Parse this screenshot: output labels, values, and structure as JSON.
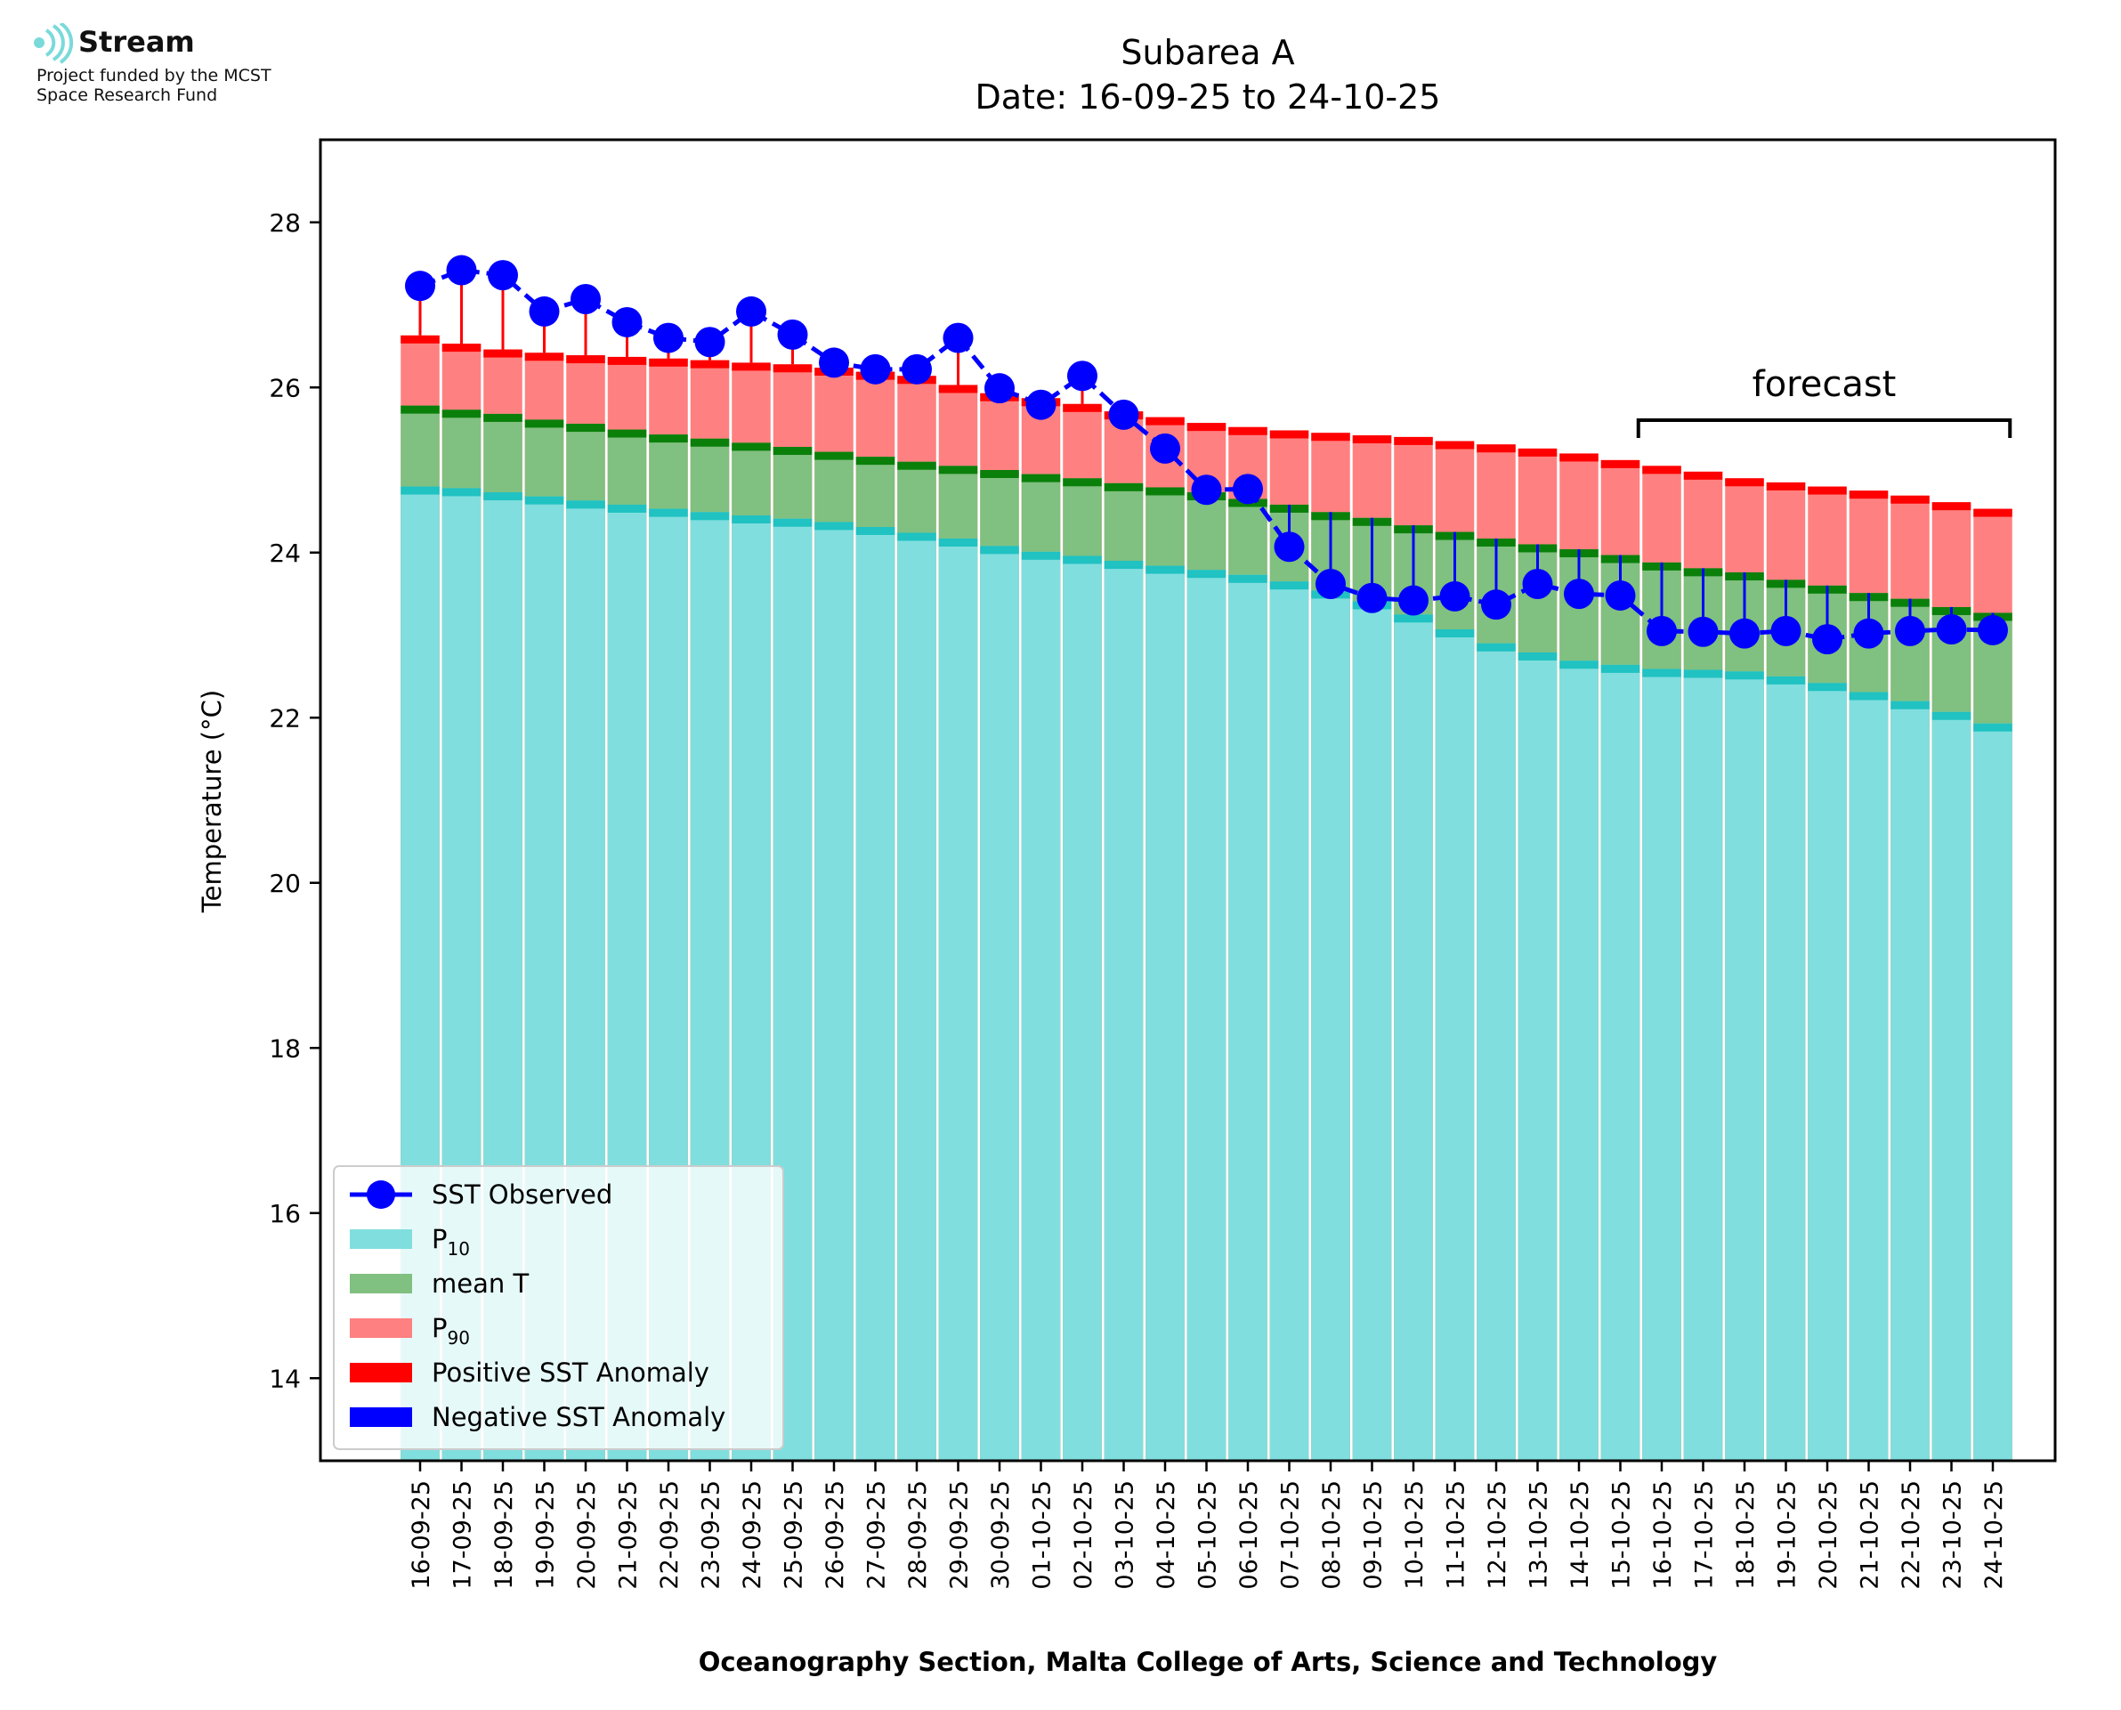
{
  "logo": {
    "name": "Stream",
    "line1": "Project funded by the MCST",
    "line2": "Space Research Fund"
  },
  "colors": {
    "p10": "#80DEDE",
    "p10_cap": "#20C2C2",
    "mean": "#80C080",
    "mean_cap": "#0A800A",
    "p90": "#FF8080",
    "p90_cap": "#FF0000",
    "observed": "#0000FF",
    "positive_anomaly": "#FF0000",
    "negative_anomaly": "#0000FF"
  },
  "chart_data": {
    "type": "bar",
    "title": "Subarea A",
    "subtitle": "Date: 16-09-25 to 24-10-25",
    "xlabel": "Oceanography Section, Malta College of Arts, Science and Technology",
    "ylabel": "Temperature (°C)",
    "ylim": [
      13,
      29
    ],
    "yticks": [
      14,
      16,
      18,
      20,
      22,
      24,
      26,
      28
    ],
    "grid": false,
    "legend_position": "lower-left",
    "annotation": "forecast",
    "forecast_range": [
      "16-10-25",
      "24-10-25"
    ],
    "categories": [
      "16-09-25",
      "17-09-25",
      "18-09-25",
      "19-09-25",
      "20-09-25",
      "21-09-25",
      "22-09-25",
      "23-09-25",
      "24-09-25",
      "25-09-25",
      "26-09-25",
      "27-09-25",
      "28-09-25",
      "29-09-25",
      "30-09-25",
      "01-10-25",
      "02-10-25",
      "03-10-25",
      "04-10-25",
      "05-10-25",
      "06-10-25",
      "07-10-25",
      "08-10-25",
      "09-10-25",
      "10-10-25",
      "11-10-25",
      "12-10-25",
      "13-10-25",
      "14-10-25",
      "15-10-25",
      "16-10-25",
      "17-10-25",
      "18-10-25",
      "19-10-25",
      "20-10-25",
      "21-10-25",
      "22-10-25",
      "23-10-25",
      "24-10-25"
    ],
    "legend": [
      {
        "label": "SST Observed",
        "kind": "line"
      },
      {
        "label": "P",
        "sub": "10",
        "kind": "p10"
      },
      {
        "label": "mean T",
        "kind": "mean"
      },
      {
        "label": "P",
        "sub": "90",
        "kind": "p90"
      },
      {
        "label": "Positive SST Anomaly",
        "kind": "pos"
      },
      {
        "label": "Negative SST Anomaly",
        "kind": "neg"
      }
    ],
    "series": [
      {
        "name": "P10",
        "values": [
          24.8,
          24.78,
          24.73,
          24.68,
          24.63,
          24.58,
          24.53,
          24.49,
          24.45,
          24.41,
          24.37,
          24.31,
          24.24,
          24.17,
          24.08,
          24.01,
          23.96,
          23.9,
          23.84,
          23.79,
          23.73,
          23.65,
          23.54,
          23.41,
          23.25,
          23.07,
          22.9,
          22.79,
          22.69,
          22.64,
          22.59,
          22.58,
          22.56,
          22.5,
          22.42,
          22.31,
          22.2,
          22.07,
          21.93
        ]
      },
      {
        "name": "mean T",
        "values": [
          25.78,
          25.73,
          25.68,
          25.61,
          25.56,
          25.49,
          25.43,
          25.38,
          25.33,
          25.28,
          25.22,
          25.16,
          25.1,
          25.05,
          25.0,
          24.95,
          24.9,
          24.84,
          24.79,
          24.73,
          24.65,
          24.58,
          24.49,
          24.42,
          24.33,
          24.25,
          24.17,
          24.1,
          24.04,
          23.97,
          23.88,
          23.81,
          23.76,
          23.67,
          23.6,
          23.51,
          23.44,
          23.34,
          23.27
        ]
      },
      {
        "name": "P90",
        "values": [
          26.63,
          26.53,
          26.46,
          26.42,
          26.39,
          26.37,
          26.35,
          26.33,
          26.3,
          26.28,
          26.24,
          26.19,
          26.14,
          26.03,
          25.93,
          25.87,
          25.8,
          25.71,
          25.64,
          25.57,
          25.52,
          25.48,
          25.45,
          25.42,
          25.4,
          25.35,
          25.31,
          25.26,
          25.2,
          25.12,
          25.05,
          24.98,
          24.9,
          24.85,
          24.8,
          24.75,
          24.69,
          24.61,
          24.53
        ]
      },
      {
        "name": "SST Observed",
        "values": [
          27.23,
          27.42,
          27.36,
          26.92,
          27.07,
          26.79,
          26.6,
          26.55,
          26.92,
          26.64,
          26.3,
          26.22,
          26.22,
          26.6,
          25.99,
          25.79,
          26.14,
          25.67,
          25.26,
          24.76,
          24.77,
          24.07,
          23.62,
          23.45,
          23.42,
          23.47,
          23.37,
          23.62,
          23.5,
          23.48,
          23.05,
          23.04,
          23.02,
          23.05,
          22.95,
          23.02,
          23.05,
          23.07,
          23.06
        ]
      }
    ]
  }
}
